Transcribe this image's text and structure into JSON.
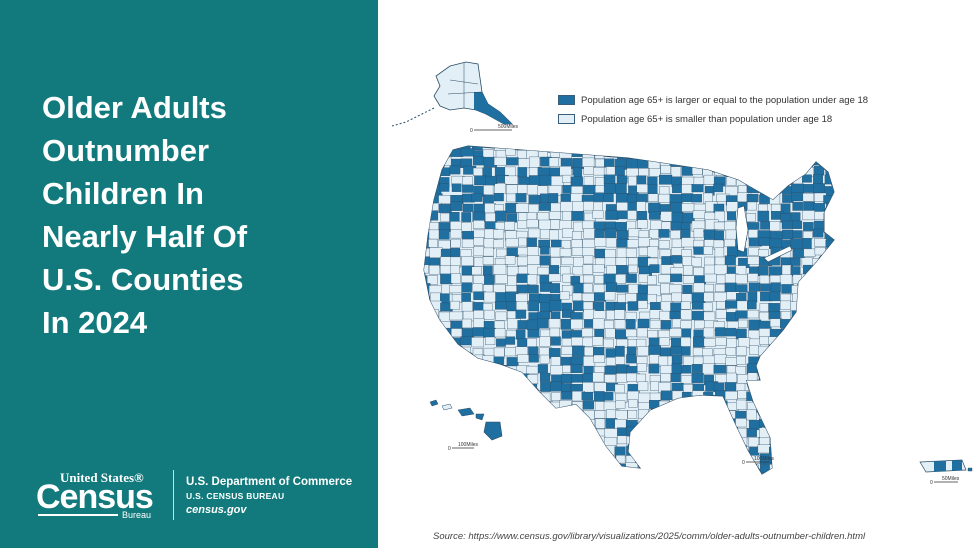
{
  "headline": {
    "lines": [
      "Older Adults",
      "Outnumber",
      "Children In",
      "Nearly Half Of",
      "U.S. Counties",
      "In 2024"
    ]
  },
  "branding": {
    "logo_top": "United States®",
    "logo_main": "Census",
    "logo_sub": "Bureau",
    "department": "U.S. Department of Commerce",
    "bureau": "U.S. CENSUS BUREAU",
    "website": "census.gov"
  },
  "legend": {
    "items": [
      {
        "label": "Population age 65+ is larger or equal to the population under age 18",
        "color": "#1f6fa1"
      },
      {
        "label": "Population age 65+ is smaller than population under age 18",
        "color": "#e2eff7"
      }
    ]
  },
  "scale_bars": {
    "alaska": "500Miles",
    "hawaii": "100Miles",
    "lower48": "100Miles",
    "puerto_rico": "50Miles",
    "zero": "0"
  },
  "source": "Source: https://www.census.gov/library/visualizations/2025/comm/older-adults-outnumber-children.html",
  "colors": {
    "panel": "#127a7c",
    "older_majority": "#1f6fa1",
    "younger_majority": "#e2eff7",
    "county_border": "#2b4b63"
  }
}
